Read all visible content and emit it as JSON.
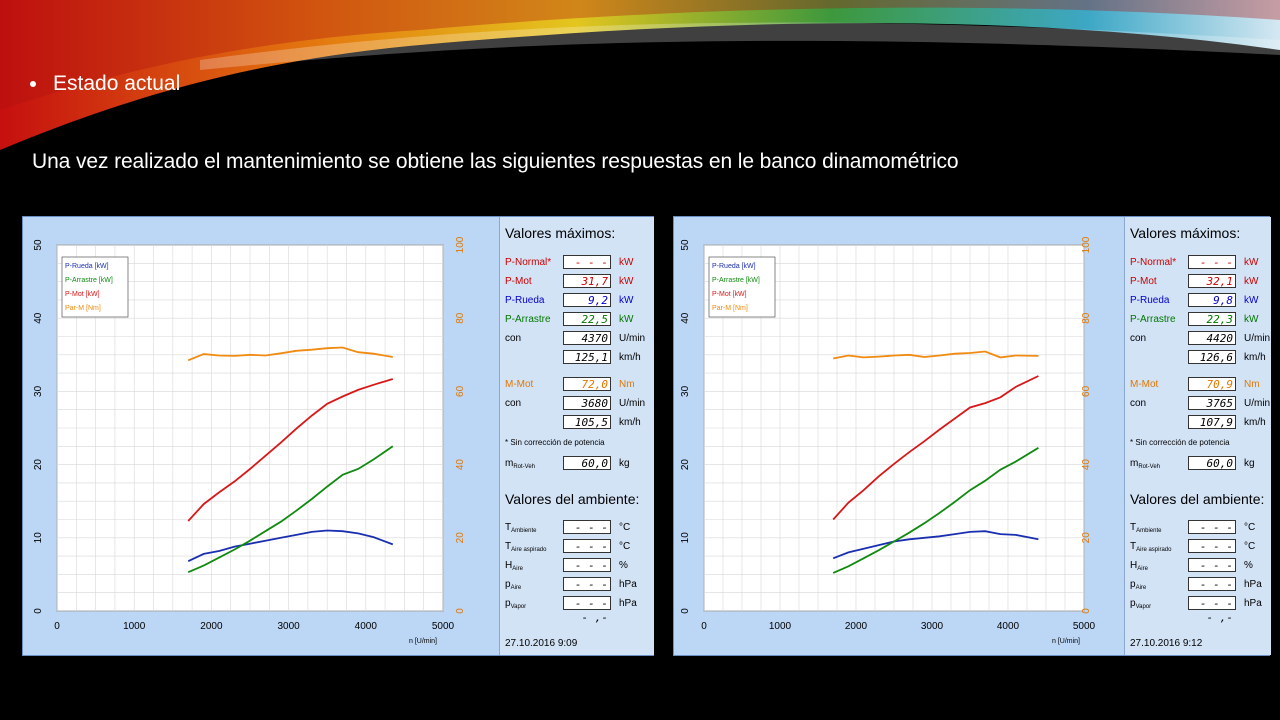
{
  "slide": {
    "bullet": "Estado actual",
    "intro": "Una vez realizado el mantenimiento se obtiene las siguientes respuestas en le banco dinamométrico"
  },
  "panels": [
    {
      "legend": [
        "P-Rueda [kW]",
        "P-Arrastre [kW]",
        "P-Mot [kW]",
        "Par-M [Nm]"
      ],
      "max_title": "Valores máximos:",
      "rows": [
        {
          "label": "P-Normal*",
          "value": "- - - - ,-",
          "unit": "kW",
          "color": "#cc0000"
        },
        {
          "label": "P-Mot",
          "value": "31,7",
          "unit": "kW",
          "color": "#cc0000"
        },
        {
          "label": "P-Rueda",
          "value": "9,2",
          "unit": "kW",
          "color": "#0000cc"
        },
        {
          "label": "P-Arrastre",
          "value": "22,5",
          "unit": "kW",
          "color": "#007700"
        },
        {
          "label": "con",
          "value": "4370",
          "unit": "U/min",
          "color": "#000"
        },
        {
          "label": "",
          "value": "125,1",
          "unit": "km/h",
          "color": "#000"
        },
        {
          "label": "M-Mot",
          "value": "72,0",
          "unit": "Nm",
          "color": "#e07800"
        },
        {
          "label": "con",
          "value": "3680",
          "unit": "U/min",
          "color": "#000"
        },
        {
          "label": "",
          "value": "105,5",
          "unit": "km/h",
          "color": "#000"
        }
      ],
      "note": "* Sin corrección de potencia",
      "mass": {
        "label": "m",
        "sub": "Rot-Veh",
        "value": "60,0",
        "unit": "kg"
      },
      "env_title": "Valores del ambiente:",
      "env": [
        {
          "label": "T",
          "sub": "Ambiente",
          "value": "- - - - ,-",
          "unit": "°C"
        },
        {
          "label": "T",
          "sub": "Aire aspirado",
          "value": "- - - - ,-",
          "unit": "°C"
        },
        {
          "label": "H",
          "sub": "Aire",
          "value": "- - - - ,-",
          "unit": "%"
        },
        {
          "label": "p",
          "sub": "Aire",
          "value": "- - - - ,-",
          "unit": "hPa"
        },
        {
          "label": "p",
          "sub": "Vapor",
          "value": "- - - - ,-",
          "unit": "hPa"
        }
      ],
      "stamp": "27.10.2016   9:09",
      "xlabel": "n [U/min]"
    },
    {
      "legend": [
        "P-Rueda [kW]",
        "P-Arrastre [kW]",
        "P-Mot [kW]",
        "Par-M [Nm]"
      ],
      "max_title": "Valores máximos:",
      "rows": [
        {
          "label": "P-Normal*",
          "value": "- - - - ,-",
          "unit": "kW",
          "color": "#cc0000"
        },
        {
          "label": "P-Mot",
          "value": "32,1",
          "unit": "kW",
          "color": "#cc0000"
        },
        {
          "label": "P-Rueda",
          "value": "9,8",
          "unit": "kW",
          "color": "#0000cc"
        },
        {
          "label": "P-Arrastre",
          "value": "22,3",
          "unit": "kW",
          "color": "#007700"
        },
        {
          "label": "con",
          "value": "4420",
          "unit": "U/min",
          "color": "#000"
        },
        {
          "label": "",
          "value": "126,6",
          "unit": "km/h",
          "color": "#000"
        },
        {
          "label": "M-Mot",
          "value": "70,9",
          "unit": "Nm",
          "color": "#e07800"
        },
        {
          "label": "con",
          "value": "3765",
          "unit": "U/min",
          "color": "#000"
        },
        {
          "label": "",
          "value": "107,9",
          "unit": "km/h",
          "color": "#000"
        }
      ],
      "note": "* Sin corrección de potencia",
      "mass": {
        "label": "m",
        "sub": "Rot-Veh",
        "value": "60,0",
        "unit": "kg"
      },
      "env_title": "Valores del ambiente:",
      "env": [
        {
          "label": "T",
          "sub": "Ambiente",
          "value": "- - - - ,-",
          "unit": "°C"
        },
        {
          "label": "T",
          "sub": "Aire aspirado",
          "value": "- - - - ,-",
          "unit": "°C"
        },
        {
          "label": "H",
          "sub": "Aire",
          "value": "- - - - ,-",
          "unit": "%"
        },
        {
          "label": "p",
          "sub": "Aire",
          "value": "- - - - ,-",
          "unit": "hPa"
        },
        {
          "label": "p",
          "sub": "Vapor",
          "value": "- - - - ,-",
          "unit": "hPa"
        }
      ],
      "stamp": "27.10.2016   9:12",
      "xlabel": "n [U/min]"
    }
  ],
  "chart_data": [
    {
      "type": "line",
      "xlabel": "n [U/min]",
      "xlim": [
        0,
        5000
      ],
      "ylim_left": [
        0,
        50
      ],
      "ylim_right": [
        0,
        100
      ],
      "xticks": [
        0,
        1000,
        2000,
        3000,
        4000,
        5000
      ],
      "yticks_left": [
        0,
        10,
        20,
        30,
        40,
        50
      ],
      "yticks_right": [
        0,
        20,
        40,
        60,
        80,
        100
      ],
      "grid": true,
      "legend_position": "top-left",
      "series": [
        {
          "name": "P-Rueda [kW]",
          "color": "#1a2fb0",
          "axis": "left",
          "x": [
            1700,
            1900,
            2100,
            2300,
            2500,
            2700,
            2900,
            3100,
            3300,
            3500,
            3700,
            3900,
            4100,
            4350
          ],
          "y": [
            6.8,
            7.8,
            8.2,
            8.8,
            9.2,
            9.6,
            10.0,
            10.4,
            10.8,
            11.0,
            10.9,
            10.6,
            10.1,
            9.1
          ]
        },
        {
          "name": "P-Arrastre [kW]",
          "color": "#108a10",
          "axis": "left",
          "x": [
            1700,
            1900,
            2100,
            2300,
            2500,
            2700,
            2900,
            3100,
            3300,
            3500,
            3700,
            3900,
            4100,
            4350
          ],
          "y": [
            5.3,
            6.2,
            7.3,
            8.4,
            9.6,
            10.9,
            12.2,
            13.7,
            15.3,
            17.0,
            18.6,
            19.4,
            20.7,
            22.5
          ]
        },
        {
          "name": "P-Mot [kW]",
          "color": "#d81818",
          "axis": "left",
          "x": [
            1700,
            1900,
            2100,
            2300,
            2500,
            2700,
            2900,
            3100,
            3300,
            3500,
            3700,
            3900,
            4100,
            4350
          ],
          "y": [
            12.3,
            14.6,
            16.2,
            17.7,
            19.4,
            21.2,
            23.0,
            24.9,
            26.7,
            28.3,
            29.3,
            30.2,
            30.9,
            31.7
          ]
        },
        {
          "name": "Par-M [Nm]",
          "color": "#f08a10",
          "axis": "right",
          "x": [
            1700,
            1900,
            2100,
            2300,
            2500,
            2700,
            2900,
            3100,
            3300,
            3500,
            3700,
            3900,
            4100,
            4350
          ],
          "y": [
            68.5,
            70.2,
            69.8,
            69.7,
            70.0,
            69.8,
            70.4,
            71.1,
            71.4,
            71.8,
            72.0,
            70.7,
            70.3,
            69.4
          ]
        }
      ]
    },
    {
      "type": "line",
      "xlabel": "n [U/min]",
      "xlim": [
        0,
        5000
      ],
      "ylim_left": [
        0,
        50
      ],
      "ylim_right": [
        0,
        100
      ],
      "xticks": [
        0,
        1000,
        2000,
        3000,
        4000,
        5000
      ],
      "yticks_left": [
        0,
        10,
        20,
        30,
        40,
        50
      ],
      "yticks_right": [
        0,
        20,
        40,
        60,
        80,
        100
      ],
      "grid": true,
      "legend_position": "top-left",
      "series": [
        {
          "name": "P-Rueda [kW]",
          "color": "#1a2fb0",
          "axis": "left",
          "x": [
            1700,
            1900,
            2100,
            2300,
            2500,
            2700,
            2900,
            3100,
            3300,
            3500,
            3700,
            3900,
            4100,
            4400
          ],
          "y": [
            7.2,
            8.0,
            8.5,
            9.0,
            9.5,
            9.8,
            10.0,
            10.2,
            10.5,
            10.8,
            10.9,
            10.5,
            10.4,
            9.8
          ]
        },
        {
          "name": "P-Arrastre [kW]",
          "color": "#108a10",
          "axis": "left",
          "x": [
            1700,
            1900,
            2100,
            2300,
            2500,
            2700,
            2900,
            3100,
            3300,
            3500,
            3700,
            3900,
            4100,
            4400
          ],
          "y": [
            5.2,
            6.1,
            7.2,
            8.3,
            9.5,
            10.7,
            12.0,
            13.4,
            14.9,
            16.5,
            17.8,
            19.3,
            20.4,
            22.3
          ]
        },
        {
          "name": "P-Mot [kW]",
          "color": "#d81818",
          "axis": "left",
          "x": [
            1700,
            1900,
            2100,
            2300,
            2500,
            2700,
            2900,
            3100,
            3300,
            3500,
            3700,
            3900,
            4100,
            4400
          ],
          "y": [
            12.5,
            14.8,
            16.5,
            18.4,
            20.1,
            21.7,
            23.2,
            24.8,
            26.3,
            27.8,
            28.4,
            29.2,
            30.6,
            32.1
          ]
        },
        {
          "name": "Par-M [Nm]",
          "color": "#f08a10",
          "axis": "right",
          "x": [
            1700,
            1900,
            2100,
            2300,
            2500,
            2700,
            2900,
            3100,
            3300,
            3500,
            3700,
            3900,
            4100,
            4400
          ],
          "y": [
            69.0,
            69.8,
            69.3,
            69.5,
            69.8,
            70.0,
            69.4,
            69.8,
            70.3,
            70.5,
            70.9,
            69.3,
            69.8,
            69.7
          ]
        }
      ]
    }
  ]
}
